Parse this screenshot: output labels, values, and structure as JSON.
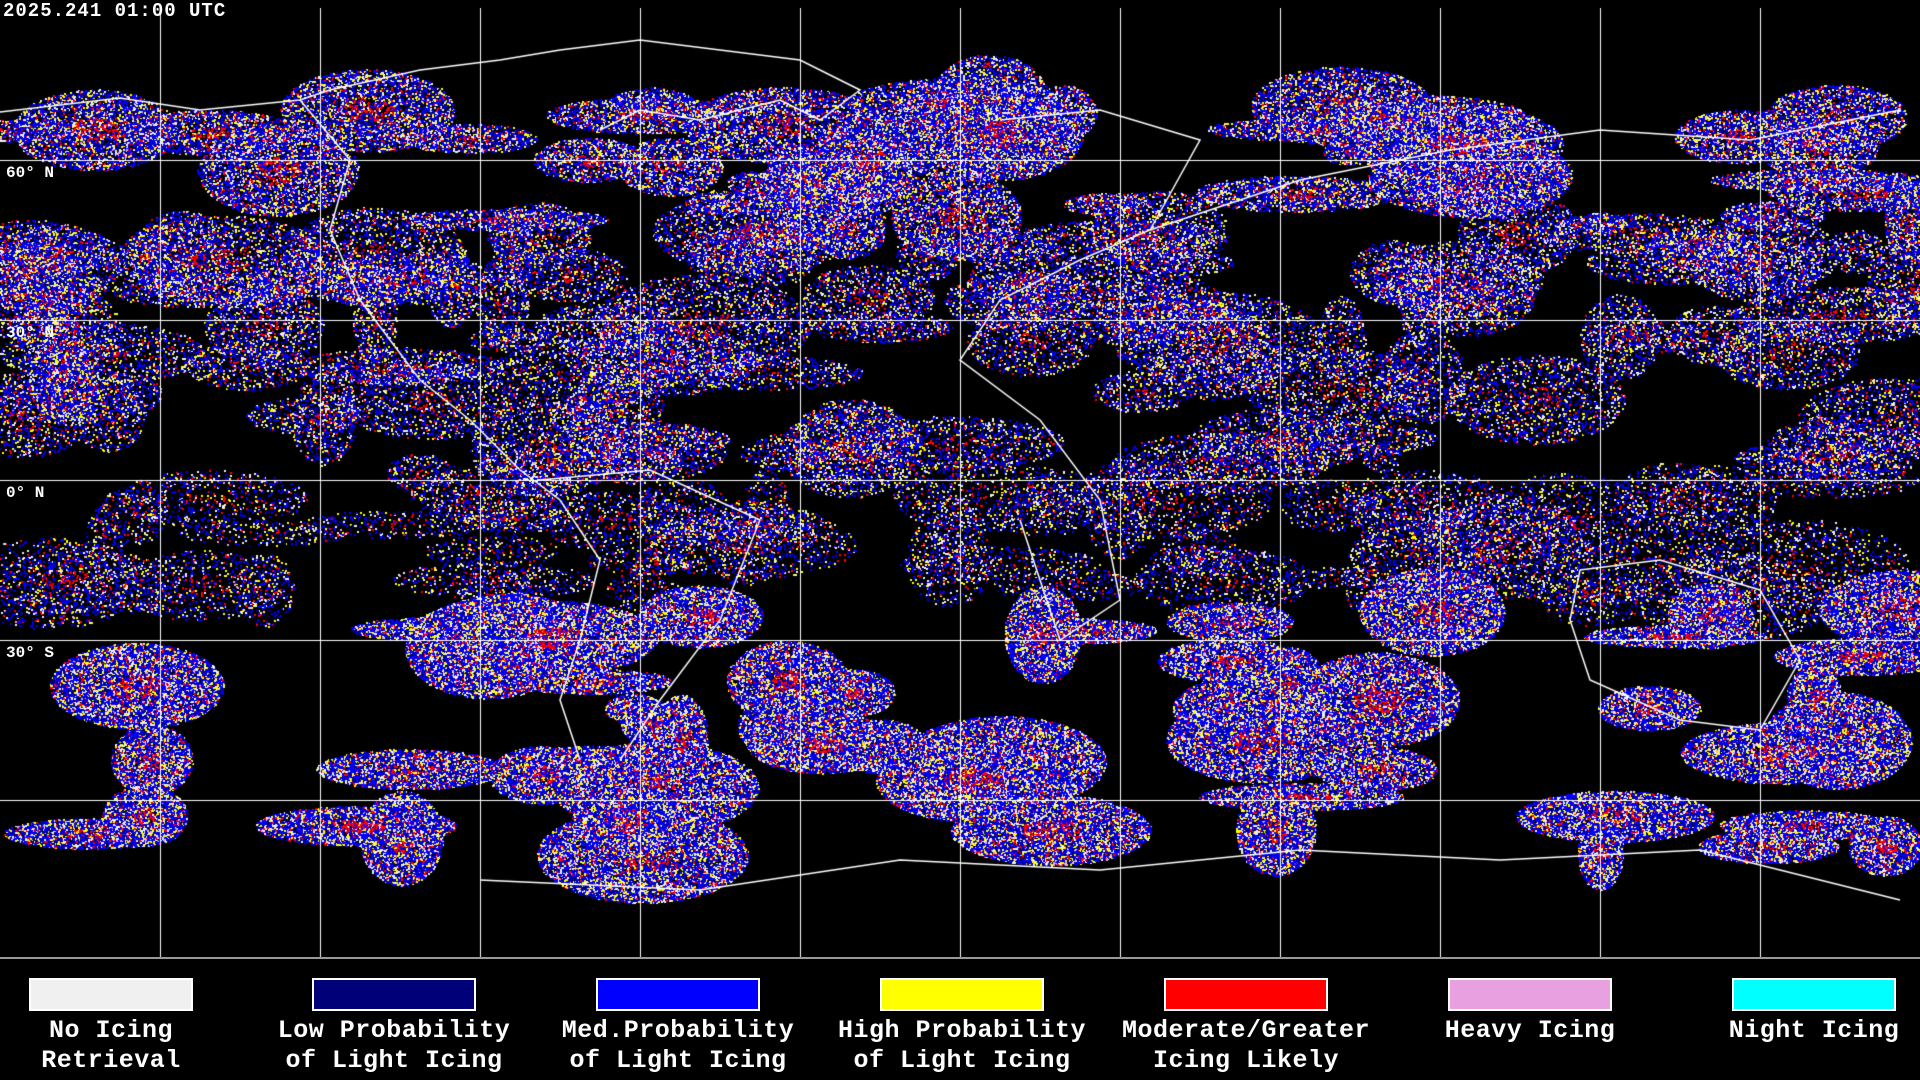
{
  "header": {
    "timestamp": "2025.241 01:00 UTC"
  },
  "map": {
    "latitude_labels": [
      "60° N",
      "30° N",
      "0° N",
      "30° S"
    ],
    "background": "#000000",
    "grid_color": "#ffffff",
    "coastline_color": "#ffffff"
  },
  "legend": [
    {
      "line1": "No Icing",
      "line2": "Retrieval",
      "color": "#f0f0f0"
    },
    {
      "line1": "Low Probability",
      "line2": "of Light Icing",
      "color": "#000078"
    },
    {
      "line1": "Med.Probability",
      "line2": "of Light Icing",
      "color": "#0000ff"
    },
    {
      "line1": "High Probability",
      "line2": "of Light Icing",
      "color": "#ffff00"
    },
    {
      "line1": "Moderate/Greater",
      "line2": "Icing Likely",
      "color": "#ff0000"
    },
    {
      "line1": "Heavy Icing",
      "line2": "",
      "color": "#e8a0e0"
    },
    {
      "line1": "Night Icing",
      "line2": "",
      "color": "#00ffff"
    }
  ]
}
